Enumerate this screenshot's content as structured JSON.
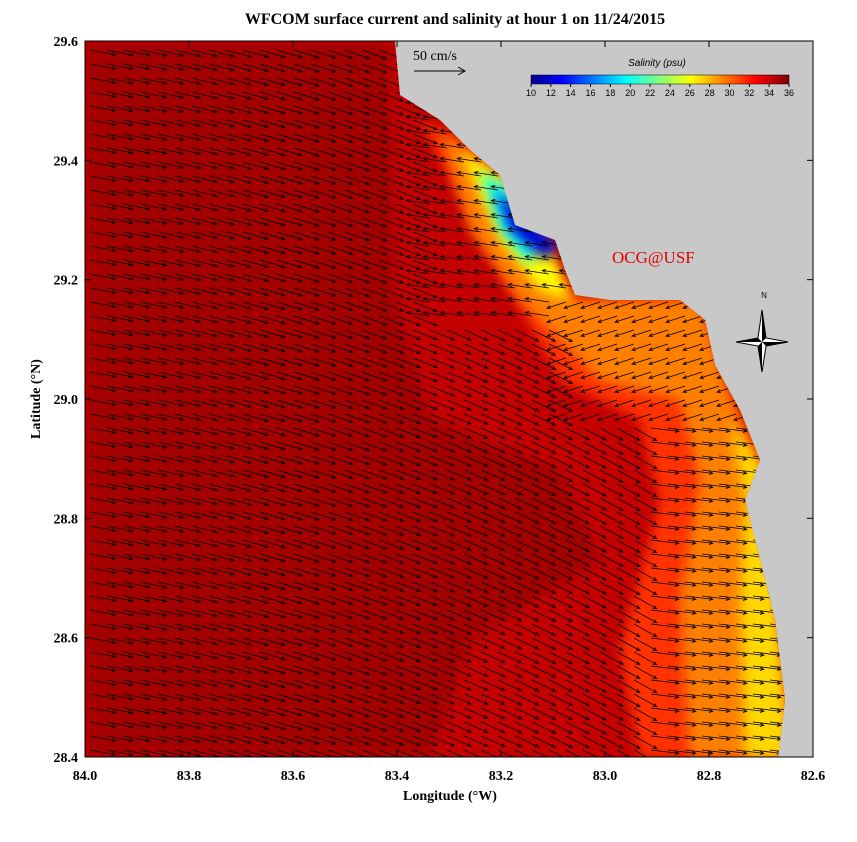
{
  "title": "WFCOM surface current and salinity at hour 1 on 11/24/2015",
  "map": {
    "xlabel": "Longitude (°W)",
    "ylabel": "Latitude (°N)",
    "xlim": [
      84.0,
      82.6
    ],
    "ylim": [
      28.4,
      29.6
    ],
    "xticks": [
      {
        "value": 84.0,
        "label": "84.0"
      },
      83.8,
      83.6,
      83.4,
      83.2,
      {
        "value": 83.0,
        "label": "83.0"
      },
      82.8,
      82.6
    ],
    "yticks": [
      28.4,
      28.6,
      28.8,
      {
        "value": 29.0,
        "label": "29.0"
      },
      29.2,
      29.4,
      29.6
    ]
  },
  "colorbar": {
    "label": "Salinity (psu)",
    "lim": [
      10,
      36
    ],
    "ticks": [
      10,
      12,
      14,
      16,
      18,
      20,
      22,
      24,
      26,
      28,
      30,
      32,
      34,
      36
    ]
  },
  "scale_arrow": {
    "label": "50 cm/s"
  },
  "annotation": "OCG@USF",
  "compass": "N"
}
